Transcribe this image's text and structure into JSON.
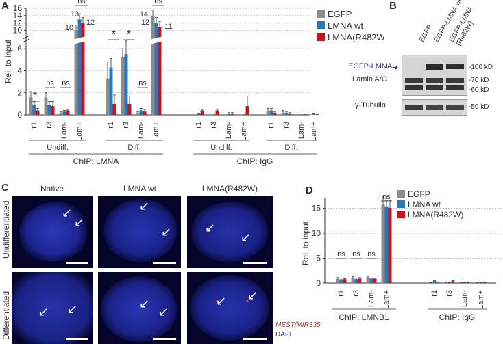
{
  "panels": {
    "a": "A",
    "b": "B",
    "c": "C",
    "d": "D"
  },
  "colors": {
    "egfp": "#8c8c8c",
    "wt": "#2878c0",
    "mut": "#c8141e"
  },
  "legend": [
    "EGFP",
    "LMNA wt",
    "LMNA(R482W)"
  ],
  "chart_data": [
    {
      "type": "bar",
      "panel": "A",
      "ylabel": "Rel. to input",
      "yticks_lower": [
        0,
        2,
        4,
        6
      ],
      "yticks_upper": [
        10,
        12,
        14,
        16
      ],
      "categories": [
        "r1",
        "r3",
        "Lam-",
        "Lam+",
        "r1",
        "r3",
        "Lam-",
        "Lam+",
        "r1",
        "r3",
        "Lam-",
        "Lam+",
        "r1",
        "r3",
        "Lam-",
        "Lam+"
      ],
      "series": [
        {
          "name": "EGFP",
          "values": [
            1.6,
            1.5,
            0.2,
            10,
            3.3,
            5.2,
            0.2,
            14,
            0.05,
            0.05,
            0.05,
            0.05,
            0.3,
            0.2,
            0.05,
            0.05
          ]
        },
        {
          "name": "LMNA wt",
          "values": [
            0.9,
            0.9,
            0.3,
            13,
            4.3,
            5.5,
            0.4,
            12,
            0.1,
            0.05,
            0.1,
            0.05,
            0.4,
            0.2,
            0.05,
            0.1
          ]
        },
        {
          "name": "LMNA(R482W)",
          "values": [
            0.4,
            0.8,
            0.4,
            12,
            1.0,
            1.0,
            0.3,
            11,
            0.4,
            0.4,
            0.1,
            0.8,
            0.2,
            0.1,
            0.05,
            0.05
          ]
        }
      ],
      "errors": [
        [
          0.5,
          0.5,
          0.1,
          1.5,
          1.5,
          0.8,
          0.1,
          1.5,
          0.05,
          0.05,
          0.05,
          0.05,
          0.3,
          0.2,
          0.05,
          0.05
        ],
        [
          0.3,
          0.3,
          0.1,
          1.5,
          0.8,
          1.2,
          0.2,
          1.5,
          0.05,
          0.05,
          0.1,
          0.05,
          0.2,
          0.1,
          0.05,
          0.05
        ],
        [
          0.2,
          0.4,
          0.1,
          1.5,
          0.8,
          0.7,
          0.2,
          1.5,
          0.1,
          0.1,
          0.1,
          0.9,
          0.1,
          0.1,
          0.05,
          0.05
        ]
      ],
      "bar_numbers": [
        "10",
        "13",
        "12",
        "14",
        "12",
        "11"
      ],
      "significance": [
        {
          "label": "*",
          "group": 0
        },
        {
          "label": "ns",
          "group": 1
        },
        {
          "label": "ns",
          "group": 2
        },
        {
          "label": "ns",
          "group": 3
        },
        {
          "label": "*",
          "group": 4
        },
        {
          "label": "*",
          "group": 5
        },
        {
          "label": "ns",
          "group": 6
        },
        {
          "label": "ns",
          "group": 7
        }
      ],
      "conditions": [
        "Undiff.",
        "Diff.",
        "Undiff.",
        "Diff."
      ],
      "chips": [
        "ChIP: LMNA",
        "ChIP: IgG"
      ]
    },
    {
      "type": "bar",
      "panel": "D",
      "ylabel": "Rel. to input",
      "ylim": [
        0,
        17
      ],
      "yticks": [
        0,
        5,
        10,
        15
      ],
      "categories": [
        "r1",
        "r3",
        "Lam-",
        "Lam+",
        "r1",
        "r3",
        "Lam-",
        "Lam+"
      ],
      "series": [
        {
          "name": "EGFP",
          "values": [
            0.9,
            1.1,
            1.2,
            15.8,
            0.05,
            0.05,
            0.05,
            0.05
          ]
        },
        {
          "name": "LMNA wt",
          "values": [
            0.6,
            0.8,
            0.9,
            15.4,
            0.4,
            0.05,
            0.05,
            0.05
          ]
        },
        {
          "name": "LMNA(R482W)",
          "values": [
            0.8,
            0.9,
            0.9,
            15.1,
            0.1,
            0.4,
            0.05,
            0.05
          ]
        }
      ],
      "errors": [
        [
          0.2,
          0.2,
          0.2,
          1.5,
          0.05,
          0.05,
          0.05,
          0.05
        ],
        [
          0.1,
          0.2,
          0.1,
          1.2,
          0.1,
          0.05,
          0.05,
          0.05
        ],
        [
          0.1,
          0.2,
          0.1,
          1.5,
          0.05,
          0.1,
          0.05,
          0.05
        ]
      ],
      "significance": [
        "ns",
        "ns",
        "ns",
        "ns"
      ],
      "chips": [
        "ChIP: LMNB1",
        "ChIP: IgG"
      ]
    }
  ],
  "blot": {
    "lanes": [
      "EGFP",
      "EGFP-LMNA wt",
      "EGFP-LMNA\n(R482W)"
    ],
    "arrow_label": "EGFP-LMNA",
    "lamin_label": "Lamin A/C",
    "tubulin_label": "γ-Tubulin",
    "markers": [
      "-100 kD",
      "-70 kD",
      "-60 kD",
      "-50 kD"
    ]
  },
  "micrographs": {
    "columns": [
      "Native",
      "LMNA wt",
      "LMNA(R482W)"
    ],
    "rows": [
      "Undifferentiated",
      "Differentiated"
    ],
    "probe": "MEST/MIR335",
    "stain": "DAPI"
  }
}
